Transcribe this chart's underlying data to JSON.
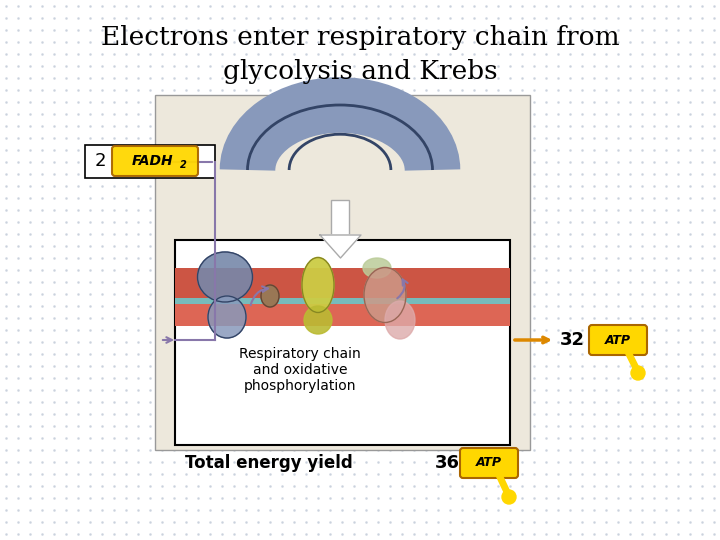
{
  "title_line1": "Electrons enter respiratory chain from",
  "title_line2": "glycolysis and Krebs",
  "bg_color": "#ffffff",
  "dot_color": "#c8d0dc",
  "title_fontsize": 19,
  "resp_chain_text": "Respiratory chain\nand oxidative\nphosphorylation",
  "total_energy_text": "Total energy yield",
  "box_bg": "#ede8dc",
  "inner_box_bg": "#ffffff",
  "membrane_red": "#cc5544",
  "membrane_teal": "#77bbbb",
  "purple_line": "#8877aa",
  "blue_gray": "#8899bb",
  "dark_blue": "#334466",
  "purple_complex": "#7777aa",
  "yellow_complex": "#cccc44",
  "pink_complex": "#cc9988",
  "tan_complex": "#bbaa99",
  "brown_circle": "#996655",
  "arrow_orange": "#dd8800",
  "atp_yellow": "#FFD700",
  "atp_outline": "#AA6600",
  "fadh2_orange": "#dd8800",
  "fadh2_bg": "#FFD700"
}
